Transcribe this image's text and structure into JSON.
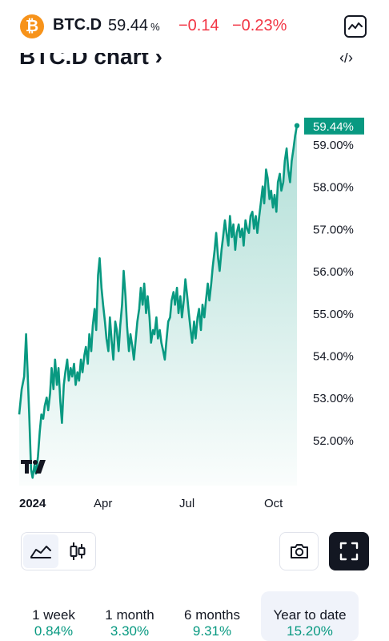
{
  "header": {
    "logo_glyph": "₿",
    "ticker": "BTC.D",
    "price": "59.44",
    "price_unit": "%",
    "change": "−0.14",
    "change_percent": "−0.23%",
    "icons": [
      "bitcoin-logo-icon",
      "chart-mode-icon"
    ]
  },
  "section": {
    "title": "BTC.D chart",
    "title_chevron": "›",
    "embed_icon_glyph": "‹/›"
  },
  "chart_data": {
    "type": "area",
    "title": "",
    "xlabel": "",
    "ylabel": "",
    "x_tick_labels": [
      "2024",
      "Apr",
      "Jul",
      "Oct"
    ],
    "y_tick_labels": [
      "52.00%",
      "53.00%",
      "54.00%",
      "55.00%",
      "56.00%",
      "57.00%",
      "58.00%",
      "59.00%"
    ],
    "ylim": [
      51.0,
      60.0
    ],
    "last_value_label": "59.44%",
    "line_color": "#089981",
    "fill_color": "#089981",
    "grid": false,
    "x_units": "fraction of year 2024 (0 = Jan 1, 1 = Dec 31)",
    "series": [
      {
        "points": [
          [
            0.0,
            52.6
          ],
          [
            0.008,
            53.2
          ],
          [
            0.016,
            53.5
          ],
          [
            0.022,
            54.5
          ],
          [
            0.027,
            53.6
          ],
          [
            0.032,
            52.6
          ],
          [
            0.038,
            51.3
          ],
          [
            0.043,
            51.1
          ],
          [
            0.049,
            51.4
          ],
          [
            0.054,
            51.2
          ],
          [
            0.06,
            51.6
          ],
          [
            0.066,
            52.2
          ],
          [
            0.071,
            52.6
          ],
          [
            0.077,
            52.5
          ],
          [
            0.082,
            52.8
          ],
          [
            0.088,
            53.0
          ],
          [
            0.093,
            52.7
          ],
          [
            0.099,
            53.1
          ],
          [
            0.104,
            53.7
          ],
          [
            0.11,
            53.2
          ],
          [
            0.115,
            53.9
          ],
          [
            0.121,
            53.3
          ],
          [
            0.126,
            53.7
          ],
          [
            0.132,
            52.9
          ],
          [
            0.137,
            52.4
          ],
          [
            0.143,
            53.3
          ],
          [
            0.148,
            53.6
          ],
          [
            0.154,
            53.9
          ],
          [
            0.159,
            53.4
          ],
          [
            0.165,
            53.7
          ],
          [
            0.17,
            53.5
          ],
          [
            0.176,
            53.8
          ],
          [
            0.181,
            53.3
          ],
          [
            0.187,
            53.6
          ],
          [
            0.192,
            53.4
          ],
          [
            0.198,
            53.9
          ],
          [
            0.203,
            53.6
          ],
          [
            0.209,
            54.0
          ],
          [
            0.214,
            54.2
          ],
          [
            0.22,
            53.8
          ],
          [
            0.225,
            54.5
          ],
          [
            0.231,
            54.1
          ],
          [
            0.236,
            54.7
          ],
          [
            0.242,
            55.1
          ],
          [
            0.247,
            54.6
          ],
          [
            0.253,
            55.9
          ],
          [
            0.258,
            56.3
          ],
          [
            0.264,
            55.6
          ],
          [
            0.269,
            55.2
          ],
          [
            0.275,
            54.8
          ],
          [
            0.28,
            54.4
          ],
          [
            0.286,
            54.1
          ],
          [
            0.291,
            54.9
          ],
          [
            0.297,
            54.3
          ],
          [
            0.302,
            53.9
          ],
          [
            0.308,
            54.8
          ],
          [
            0.313,
            54.6
          ],
          [
            0.319,
            54.1
          ],
          [
            0.324,
            54.7
          ],
          [
            0.33,
            55.2
          ],
          [
            0.335,
            56.0
          ],
          [
            0.341,
            55.4
          ],
          [
            0.346,
            54.7
          ],
          [
            0.352,
            54.1
          ],
          [
            0.357,
            54.5
          ],
          [
            0.363,
            54.2
          ],
          [
            0.368,
            53.9
          ],
          [
            0.374,
            54.4
          ],
          [
            0.379,
            54.8
          ],
          [
            0.385,
            55.1
          ],
          [
            0.39,
            55.6
          ],
          [
            0.396,
            55.2
          ],
          [
            0.401,
            55.7
          ],
          [
            0.407,
            55.0
          ],
          [
            0.412,
            55.4
          ],
          [
            0.418,
            54.9
          ],
          [
            0.423,
            54.3
          ],
          [
            0.429,
            54.6
          ],
          [
            0.434,
            54.5
          ],
          [
            0.44,
            54.9
          ],
          [
            0.445,
            54.4
          ],
          [
            0.451,
            54.6
          ],
          [
            0.456,
            54.3
          ],
          [
            0.462,
            54.1
          ],
          [
            0.467,
            53.9
          ],
          [
            0.473,
            54.4
          ],
          [
            0.478,
            54.8
          ],
          [
            0.484,
            54.9
          ],
          [
            0.489,
            55.3
          ],
          [
            0.495,
            55.5
          ],
          [
            0.5,
            55.2
          ],
          [
            0.506,
            55.6
          ],
          [
            0.511,
            55.0
          ],
          [
            0.517,
            55.4
          ],
          [
            0.522,
            54.9
          ],
          [
            0.528,
            55.3
          ],
          [
            0.533,
            55.8
          ],
          [
            0.539,
            55.4
          ],
          [
            0.544,
            55.0
          ],
          [
            0.55,
            54.6
          ],
          [
            0.555,
            54.3
          ],
          [
            0.561,
            54.8
          ],
          [
            0.566,
            54.4
          ],
          [
            0.572,
            54.9
          ],
          [
            0.577,
            55.1
          ],
          [
            0.583,
            54.6
          ],
          [
            0.588,
            55.2
          ],
          [
            0.594,
            54.9
          ],
          [
            0.599,
            55.3
          ],
          [
            0.605,
            55.7
          ],
          [
            0.61,
            55.3
          ],
          [
            0.616,
            55.7
          ],
          [
            0.621,
            56.1
          ],
          [
            0.627,
            56.5
          ],
          [
            0.632,
            56.9
          ],
          [
            0.638,
            56.3
          ],
          [
            0.643,
            56.0
          ],
          [
            0.649,
            56.5
          ],
          [
            0.654,
            56.8
          ],
          [
            0.66,
            57.2
          ],
          [
            0.665,
            56.9
          ],
          [
            0.671,
            56.6
          ],
          [
            0.676,
            57.3
          ],
          [
            0.682,
            56.8
          ],
          [
            0.687,
            57.1
          ],
          [
            0.693,
            56.5
          ],
          [
            0.698,
            56.9
          ],
          [
            0.704,
            57.1
          ],
          [
            0.709,
            56.8
          ],
          [
            0.715,
            57.0
          ],
          [
            0.72,
            56.6
          ],
          [
            0.726,
            57.2
          ],
          [
            0.731,
            57.0
          ],
          [
            0.737,
            56.9
          ],
          [
            0.742,
            57.3
          ],
          [
            0.748,
            57.4
          ],
          [
            0.753,
            57.0
          ],
          [
            0.759,
            57.3
          ],
          [
            0.764,
            56.9
          ],
          [
            0.77,
            57.3
          ],
          [
            0.775,
            57.6
          ],
          [
            0.781,
            58.0
          ],
          [
            0.786,
            57.6
          ],
          [
            0.792,
            58.4
          ],
          [
            0.797,
            58.2
          ],
          [
            0.803,
            57.7
          ],
          [
            0.808,
            57.9
          ],
          [
            0.814,
            57.5
          ],
          [
            0.819,
            57.8
          ],
          [
            0.825,
            57.4
          ],
          [
            0.83,
            58.1
          ],
          [
            0.836,
            58.3
          ],
          [
            0.841,
            57.9
          ],
          [
            0.847,
            58.1
          ],
          [
            0.852,
            58.6
          ],
          [
            0.858,
            58.9
          ],
          [
            0.863,
            58.4
          ],
          [
            0.869,
            58.1
          ],
          [
            0.874,
            58.6
          ],
          [
            0.88,
            58.9
          ],
          [
            0.885,
            59.2
          ],
          [
            0.891,
            59.44
          ]
        ]
      }
    ]
  },
  "toolbar": {
    "icons": [
      "area-chart-icon",
      "candlestick-icon",
      "camera-icon",
      "fullscreen-icon"
    ]
  },
  "periods": [
    {
      "label": "1 week",
      "value": "0.84%"
    },
    {
      "label": "1 month",
      "value": "3.30%"
    },
    {
      "label": "6 months",
      "value": "9.31%"
    },
    {
      "label": "Year to date",
      "value": "15.20%"
    }
  ]
}
